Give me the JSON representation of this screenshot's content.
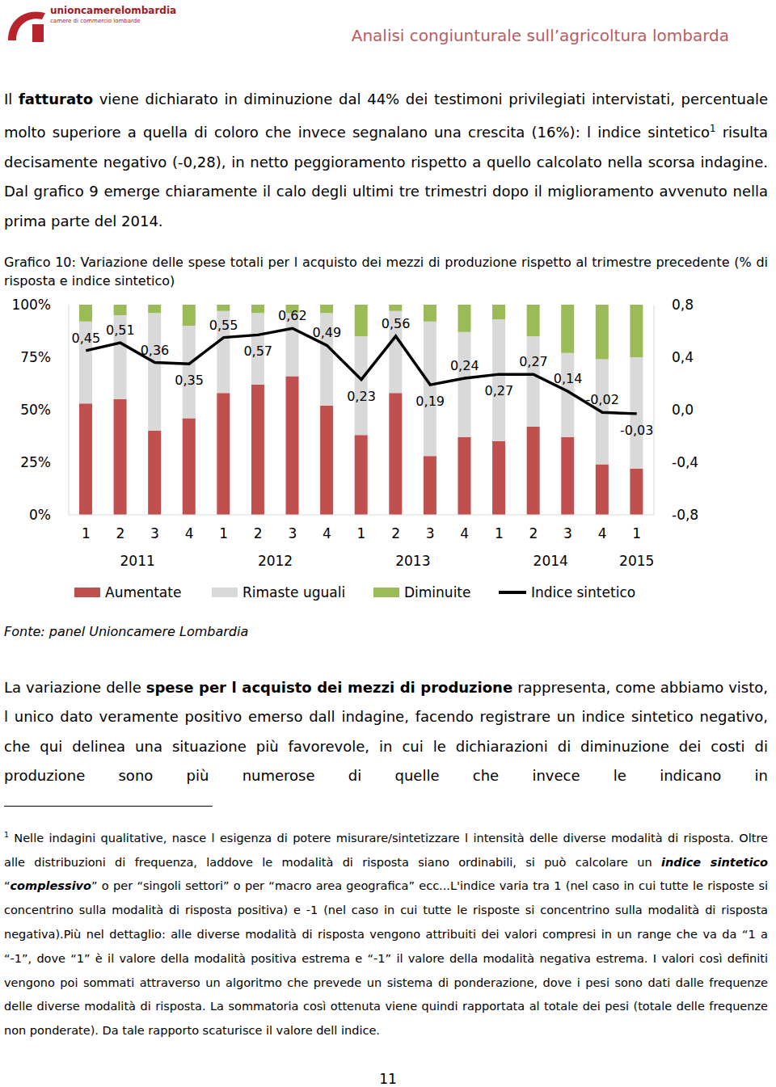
{
  "header": {
    "logo": "unioncamerelombardia",
    "logo_sub": "camere di commercio lombarde",
    "title": "Analisi congiunturale sull’agricoltura lombarda"
  },
  "paragraph1": [
    {
      "text": "Il "
    },
    {
      "text": "fatturato",
      "bold": true
    },
    {
      "text": " viene dichiarato in diminuzione dal 44% dei testimoni privilegiati intervistati, percentuale molto superiore a quella di coloro che invece segnalano una crescita (16%): l indice sintetico"
    },
    {
      "text": "1",
      "sup": true
    },
    {
      "text": " risulta decisamente negativo (-0,28), in netto peggioramento rispetto a quello calcolato nella scorsa indagine. Dal grafico 9 emerge chiaramente il calo degli ultimi tre trimestri dopo il miglioramento avvenuto nella prima parte del 2014."
    }
  ],
  "chart_data": {
    "type": "bar",
    "title": "Grafico 10: Variazione delle spese totali per l acquisto dei mezzi di produzione rispetto al trimestre precedente (% di risposta e indice sintetico)",
    "stacked": true,
    "legend": "bottom",
    "categories": [
      "1",
      "2",
      "3",
      "4",
      "1",
      "2",
      "3",
      "4",
      "1",
      "2",
      "3",
      "4",
      "1",
      "2",
      "3",
      "4",
      "1"
    ],
    "groups": [
      "2011",
      "2011",
      "2011",
      "2011",
      "2012",
      "2012",
      "2012",
      "2012",
      "2013",
      "2013",
      "2013",
      "2013",
      "2014",
      "2014",
      "2014",
      "2014",
      "2015"
    ],
    "ylim": [
      0,
      100
    ],
    "yticks": [
      {
        "value": 0,
        "label": "0%"
      },
      {
        "value": 25,
        "label": "25%"
      },
      {
        "value": 50,
        "label": "50%"
      },
      {
        "value": 75,
        "label": "75%"
      },
      {
        "value": 100,
        "label": "100%"
      }
    ],
    "y2lim": [
      -0.8,
      0.8
    ],
    "y2ticks": [
      {
        "value": -0.8,
        "label": "-0,8"
      },
      {
        "value": -0.4,
        "label": "-0,4"
      },
      {
        "value": 0,
        "label": "0,0"
      },
      {
        "value": 0.4,
        "label": "0,4"
      },
      {
        "value": 0.8,
        "label": "0,8"
      }
    ],
    "series": [
      {
        "name": "Aumentate",
        "color": "#C0504D",
        "values": [
          53,
          55,
          40,
          46,
          58,
          62,
          66,
          52,
          38,
          58,
          28,
          37,
          35,
          42,
          37,
          24,
          22
        ]
      },
      {
        "name": "Rimaste uguali",
        "color": "#D9D9D9",
        "values": [
          39,
          40,
          56,
          44,
          39,
          34,
          30,
          44,
          47,
          39,
          64,
          50,
          58,
          43,
          40,
          50,
          53
        ]
      },
      {
        "name": "Diminuite",
        "color": "#9BBB59",
        "values": [
          8,
          5,
          4,
          10,
          3,
          4,
          4,
          4,
          15,
          3,
          8,
          13,
          7,
          15,
          23,
          26,
          25
        ]
      },
      {
        "name": "Indice sintetico",
        "type": "line",
        "axis": "y2",
        "color": "#000000",
        "data_labels": true,
        "values": [
          0.45,
          0.51,
          0.36,
          0.35,
          0.55,
          0.57,
          0.62,
          0.49,
          0.23,
          0.56,
          0.19,
          0.24,
          0.27,
          0.27,
          0.14,
          -0.02,
          -0.03
        ],
        "value_labels": [
          "0,45",
          "0,51",
          "0,36",
          "0,35",
          "0,55",
          "0,57",
          "0,62",
          "0,49",
          "0,23",
          "0,56",
          "0,19",
          "0,24",
          "0,27",
          "0,27",
          "0,14",
          "-0,02",
          "-0,03"
        ]
      }
    ]
  },
  "source": "Fonte: panel Unioncamere Lombardia",
  "paragraph2": [
    {
      "text": "La variazione delle "
    },
    {
      "text": "spese per l acquisto dei mezzi di produzione",
      "bold": true
    },
    {
      "text": " rappresenta, come abbiamo visto, l unico dato veramente positivo emerso dall indagine, facendo registrare un indice sintetico negativo, che qui delinea una situazione più favorevole, in cui le dichiarazioni di diminuzione dei costi di produzione sono più numerose di quelle che invece le indicano in"
    }
  ],
  "footnote": [
    {
      "text": "1",
      "sup": true
    },
    {
      "text": " Nelle indagini qualitative, nasce l esigenza di potere misurare/sintetizzare l intensità delle diverse modalità di risposta. Oltre alle distribuzioni di frequenza, laddove le modalità di risposta siano ordinabili, si può calcolare un "
    },
    {
      "text": "indice sintetico",
      "bold": true,
      "italic": true
    },
    {
      "text": " “"
    },
    {
      "text": "complessivo",
      "bold": true,
      "italic": true
    },
    {
      "text": "” o per “singoli settori” o per “macro area geografica” ecc...L'indice varia tra 1 (nel caso in cui tutte le risposte si concentrino sulla modalità di risposta positiva) e -1 (nel caso in cui tutte le risposte si concentrino sulla modalità di risposta negativa).Più nel dettaglio: alle diverse modalità di risposta vengono attribuiti dei valori compresi in un range che va da “1 a “-1”, dove “1” è il valore della modalità positiva estrema e “-1” il valore della modalità negativa estrema. I valori così definiti vengono poi sommati attraverso un algoritmo che prevede un sistema di ponderazione, dove i pesi sono dati dalle frequenze delle diverse modalità di risposta. La sommatoria così ottenuta viene quindi rapportata al totale dei pesi (totale delle frequenze non ponderate). Da tale rapporto scaturisce il valore dell indice."
    }
  ],
  "page_number": "11"
}
